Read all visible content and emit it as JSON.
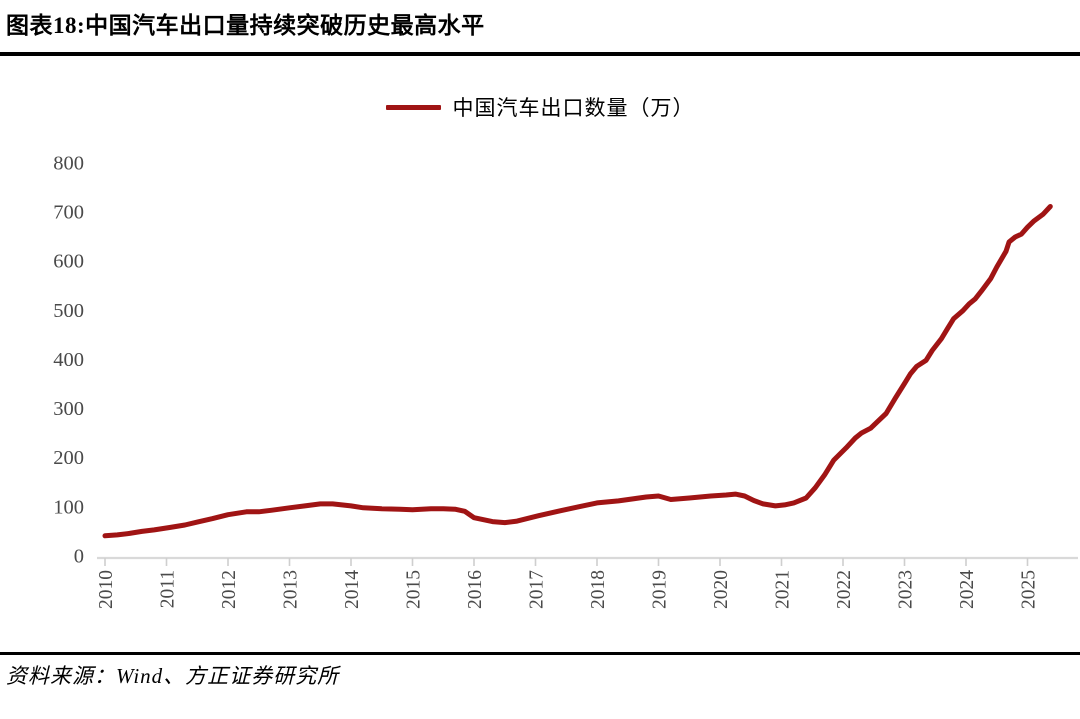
{
  "header": {
    "title": "图表18:中国汽车出口量持续突破历史最高水平"
  },
  "legend": {
    "label": "中国汽车出口数量（万）"
  },
  "footer": {
    "source": "资料来源：Wind、方正证券研究所"
  },
  "colors": {
    "line": "#A01414",
    "axis": "#D9D9D9",
    "tick": "#CFCFCF",
    "tick_label": "#4A4A4A",
    "rule": "#000000",
    "background": "#FFFFFF"
  },
  "chart_data": {
    "type": "line",
    "title": "图表18:中国汽车出口量持续突破历史最高水平",
    "legend_entries": [
      "中国汽车出口数量（万）"
    ],
    "legend_position": "top-center",
    "xlabel": "",
    "ylabel": "",
    "grid": false,
    "ylim": [
      0,
      800
    ],
    "y_ticks": [
      0,
      100,
      200,
      300,
      400,
      500,
      600,
      700,
      800
    ],
    "x_ticks": [
      "2010",
      "2011",
      "2012",
      "2013",
      "2014",
      "2015",
      "2016",
      "2017",
      "2018",
      "2019",
      "2020",
      "2021",
      "2022",
      "2023",
      "2024",
      "2025"
    ],
    "x_range": [
      2010,
      2025.85
    ],
    "series": [
      {
        "name": "中国汽车出口数量（万）",
        "color": "#A01414",
        "points": [
          [
            2010.0,
            40
          ],
          [
            2010.2,
            42
          ],
          [
            2010.4,
            45
          ],
          [
            2010.6,
            49
          ],
          [
            2010.8,
            52
          ],
          [
            2011.05,
            57
          ],
          [
            2011.3,
            62
          ],
          [
            2011.5,
            68
          ],
          [
            2011.75,
            75
          ],
          [
            2012.0,
            83
          ],
          [
            2012.3,
            89
          ],
          [
            2012.5,
            89
          ],
          [
            2012.7,
            92
          ],
          [
            2013.0,
            97
          ],
          [
            2013.25,
            101
          ],
          [
            2013.5,
            105
          ],
          [
            2013.7,
            105
          ],
          [
            2014.0,
            101
          ],
          [
            2014.2,
            97
          ],
          [
            2014.5,
            95
          ],
          [
            2014.8,
            94
          ],
          [
            2015.0,
            93
          ],
          [
            2015.3,
            95
          ],
          [
            2015.5,
            95
          ],
          [
            2015.7,
            94
          ],
          [
            2015.85,
            90
          ],
          [
            2016.0,
            77
          ],
          [
            2016.3,
            69
          ],
          [
            2016.5,
            67
          ],
          [
            2016.7,
            70
          ],
          [
            2017.05,
            81
          ],
          [
            2017.4,
            91
          ],
          [
            2017.7,
            99
          ],
          [
            2018.0,
            107
          ],
          [
            2018.35,
            111
          ],
          [
            2018.8,
            119
          ],
          [
            2019.0,
            121
          ],
          [
            2019.2,
            114
          ],
          [
            2019.5,
            117
          ],
          [
            2019.85,
            121
          ],
          [
            2020.1,
            123
          ],
          [
            2020.25,
            125
          ],
          [
            2020.4,
            121
          ],
          [
            2020.55,
            112
          ],
          [
            2020.7,
            105
          ],
          [
            2020.9,
            101
          ],
          [
            2021.05,
            103
          ],
          [
            2021.2,
            107
          ],
          [
            2021.4,
            117
          ],
          [
            2021.55,
            138
          ],
          [
            2021.7,
            164
          ],
          [
            2021.85,
            194
          ],
          [
            2022.05,
            219
          ],
          [
            2022.2,
            239
          ],
          [
            2022.3,
            249
          ],
          [
            2022.45,
            259
          ],
          [
            2022.55,
            271
          ],
          [
            2022.7,
            289
          ],
          [
            2022.85,
            320
          ],
          [
            2023.0,
            350
          ],
          [
            2023.1,
            370
          ],
          [
            2023.2,
            385
          ],
          [
            2023.35,
            397
          ],
          [
            2023.45,
            417
          ],
          [
            2023.6,
            441
          ],
          [
            2023.7,
            462
          ],
          [
            2023.8,
            482
          ],
          [
            2023.95,
            498
          ],
          [
            2024.05,
            512
          ],
          [
            2024.15,
            522
          ],
          [
            2024.25,
            538
          ],
          [
            2024.4,
            563
          ],
          [
            2024.5,
            587
          ],
          [
            2024.65,
            619
          ],
          [
            2024.7,
            638
          ],
          [
            2024.8,
            648
          ],
          [
            2024.9,
            654
          ],
          [
            2025.0,
            668
          ],
          [
            2025.1,
            680
          ],
          [
            2025.25,
            694
          ],
          [
            2025.37,
            710
          ]
        ]
      }
    ]
  }
}
